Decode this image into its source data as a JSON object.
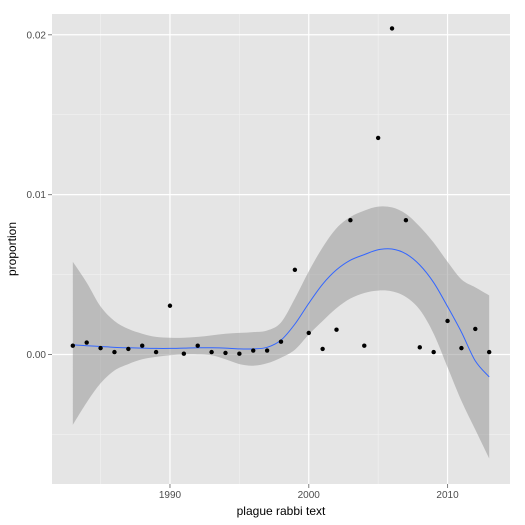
{
  "chart_data": {
    "type": "scatter",
    "xlabel": "plague rabbi text",
    "ylabel": "proportion",
    "xlim": [
      1981.5,
      2014.5
    ],
    "ylim": [
      -0.0081,
      0.0213
    ],
    "x_ticks": [
      1990,
      2000,
      2010
    ],
    "x_tick_labels": [
      "1990",
      "2000",
      "2010"
    ],
    "y_ticks": [
      0.0,
      0.01,
      0.02
    ],
    "y_tick_labels": [
      "0.00",
      "0.01",
      "0.02"
    ],
    "grid": true,
    "points": {
      "x": [
        1983,
        1984,
        1985,
        1986,
        1987,
        1988,
        1989,
        1990,
        1991,
        1992,
        1993,
        1994,
        1995,
        1996,
        1997,
        1998,
        1999,
        2000,
        2001,
        2002,
        2003,
        2004,
        2005,
        2006,
        2007,
        2008,
        2009,
        2010,
        2011,
        2012,
        2013
      ],
      "y": [
        0.00055,
        0.00075,
        0.0004,
        0.00015,
        0.00035,
        0.00055,
        0.00015,
        0.00305,
        5e-05,
        0.00055,
        0.00015,
        0.0001,
        5e-05,
        0.00025,
        0.00025,
        0.0008,
        0.0053,
        0.00135,
        0.00035,
        0.00155,
        0.0084,
        0.00055,
        0.01355,
        0.0204,
        0.0084,
        0.00045,
        0.00015,
        0.0021,
        0.0004,
        0.0016,
        0.00015
      ]
    },
    "smooth": {
      "x": [
        1983,
        1984,
        1985,
        1986,
        1987,
        1988,
        1989,
        1990,
        1991,
        1992,
        1993,
        1994,
        1995,
        1996,
        1997,
        1998,
        1999,
        2000,
        2001,
        2002,
        2003,
        2004,
        2005,
        2006,
        2007,
        2008,
        2009,
        2010,
        2011,
        2012,
        2013
      ],
      "y": [
        0.0006,
        0.00055,
        0.0005,
        0.00045,
        0.00042,
        0.0004,
        0.00038,
        0.00038,
        0.0004,
        0.00042,
        0.00042,
        0.0004,
        0.00035,
        0.00035,
        0.00045,
        0.0009,
        0.0019,
        0.0032,
        0.0044,
        0.0053,
        0.0059,
        0.00625,
        0.00655,
        0.0066,
        0.0063,
        0.0056,
        0.0045,
        0.003,
        0.0014,
        -0.0004,
        -0.0014
      ],
      "lower": [
        -0.0044,
        -0.003,
        -0.0018,
        -0.001,
        -0.0006,
        -0.0003,
        -0.00015,
        -5e-05,
        0.0,
        0.0,
        -5e-05,
        -0.0003,
        -0.0006,
        -0.0007,
        -0.00055,
        -0.0002,
        0.0003,
        0.00125,
        0.0021,
        0.0029,
        0.0035,
        0.00385,
        0.004,
        0.00395,
        0.0036,
        0.0028,
        0.0013,
        -0.0008,
        -0.0029,
        -0.0047,
        -0.0065
      ],
      "upper": [
        0.0058,
        0.0045,
        0.003,
        0.0021,
        0.0016,
        0.0013,
        0.0011,
        0.00105,
        0.00105,
        0.0011,
        0.0012,
        0.0013,
        0.00135,
        0.0014,
        0.0015,
        0.002,
        0.0035,
        0.0052,
        0.0067,
        0.0079,
        0.0086,
        0.009,
        0.00925,
        0.0092,
        0.0088,
        0.008,
        0.007,
        0.0058,
        0.0047,
        0.0042,
        0.0037
      ]
    },
    "colors": {
      "panel": "#e5e5e5",
      "grid_major": "#ffffff",
      "grid_minor": "#f2f2f2",
      "ribbon": "#999999",
      "smooth_line": "#3366ff",
      "points": "#000000"
    }
  }
}
